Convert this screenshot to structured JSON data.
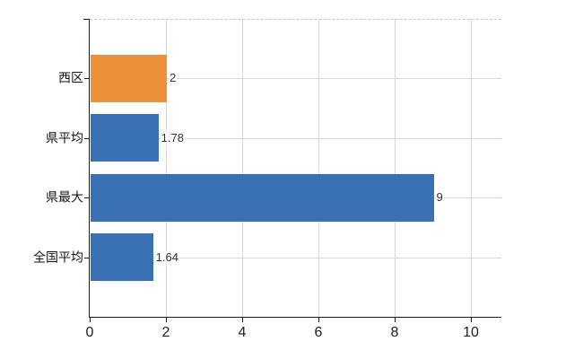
{
  "chart_data": {
    "type": "bar",
    "orientation": "horizontal",
    "title": "",
    "xlabel": "",
    "ylabel": "",
    "categories": [
      "西区",
      "県平均",
      "県最大",
      "全国平均"
    ],
    "values": [
      2,
      1.78,
      9,
      1.64
    ],
    "value_labels": [
      "2",
      "1.78",
      "9",
      "1.64"
    ],
    "bar_colors": [
      "#ED9138",
      "#3A70B4",
      "#3A70B4",
      "#3A70B4"
    ],
    "x_ticks": [
      0,
      2,
      4,
      6,
      8,
      10
    ],
    "x_tick_labels": [
      "0",
      "2",
      "4",
      "6",
      "8",
      "10"
    ],
    "xlim": [
      0,
      10.8
    ],
    "grid": true,
    "legend": null,
    "colors": {
      "accent_orange": "#ED9138",
      "accent_blue": "#3A70B4",
      "gridline": "#d6d6d6",
      "top_border_dashed": "#c7c7c7",
      "axis": "#1a1a1a",
      "background": "#ffffff"
    }
  }
}
